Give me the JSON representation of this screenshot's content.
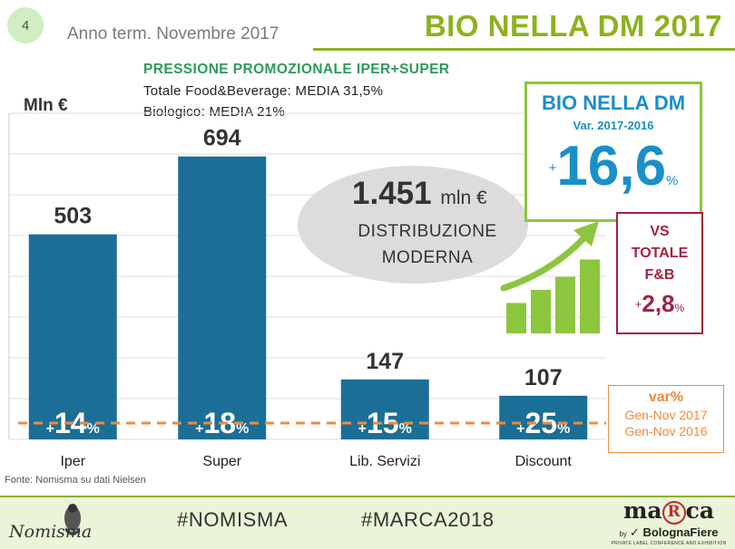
{
  "header": {
    "slide_number": "4",
    "subtitle": "Anno term. Novembre 2017",
    "title": "BIO NELLA DM 2017"
  },
  "promo": {
    "title": "PRESSIONE PROMOZIONALE IPER+SUPER",
    "line1": "Totale Food&Beverage: MEDIA 31,5%",
    "line2": "Biologico: MEDIA 21%"
  },
  "chart_data": {
    "type": "bar",
    "ylabel": "Mln €",
    "categories": [
      "Iper",
      "Super",
      "Lib. Servizi",
      "Discount"
    ],
    "values": [
      503,
      694,
      147,
      107
    ],
    "value_labels": [
      "503",
      "694",
      "147",
      "107"
    ],
    "var_labels": [
      "14",
      "18",
      "15",
      "25"
    ],
    "ylim": [
      0,
      800
    ],
    "grid": true,
    "bar_color": "#1b6e96"
  },
  "ellipse": {
    "value": "1.451",
    "unit": "mln €",
    "line1": "DISTRIBUZIONE",
    "line2": "MODERNA"
  },
  "bio_dm_box": {
    "title": "BIO NELLA DM",
    "sub": "Var. 2017-2016",
    "sign": "+",
    "value": "16,6",
    "pct": "%"
  },
  "vs_box": {
    "line1": "VS",
    "line2": "TOTALE",
    "line3": "F&B",
    "sign": "+",
    "value": "2,8",
    "pct": "%"
  },
  "var_box": {
    "title": "var%",
    "line1": "Gen-Nov 2017",
    "line2": "Gen-Nov 2016"
  },
  "growth_icon": {
    "bar_levels": [
      0.35,
      0.5,
      0.65,
      0.85
    ],
    "color": "#8cc63f"
  },
  "source": "Fonte: Nomisma su dati Nielsen",
  "footer": {
    "tag1": "#NOMISMA",
    "tag2": "#MARCA2018",
    "nomisma_logo_text": "Nomisma",
    "marca_logo": "marca by BolognaFiere",
    "marca_tagline": "PRIVATE LABEL CONFERENCE AND EXHIBITION"
  },
  "colors": {
    "accent_green": "#8cb21e",
    "blue": "#1a8fc9",
    "red": "#a3213f",
    "orange": "#f08a3c"
  }
}
